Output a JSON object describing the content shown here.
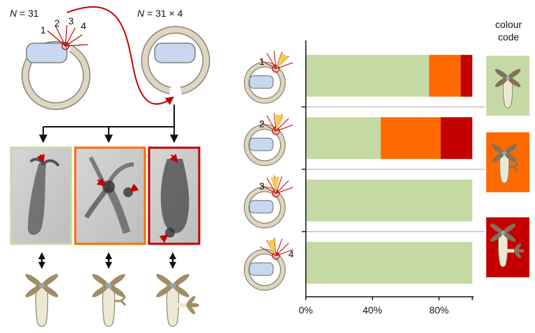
{
  "labels": {
    "n_left_var": "N",
    "n_left_rest": " = 31",
    "n_right_var": "N",
    "n_right_rest": " = 31 × 4",
    "sites": [
      "1",
      "2",
      "3",
      "4"
    ],
    "colour_code": [
      "colour",
      "code"
    ]
  },
  "colors": {
    "green": "#c5d9a4",
    "orange": "#ff6a00",
    "red": "#c40000",
    "cut": "#f3c64a",
    "disc": "#c8d8f0",
    "ring": "#dcd6c2",
    "arrow": "#c40000",
    "polyp_body": "#ede7d4",
    "tentacle": "#9f8e64"
  },
  "chart_data": {
    "type": "bar",
    "orientation": "horizontal",
    "stacked": true,
    "categories": [
      "1",
      "2",
      "3",
      "4"
    ],
    "series": [
      {
        "color": "#c5d9a4",
        "values": [
          74,
          45,
          100,
          100
        ]
      },
      {
        "color": "#ff6a00",
        "values": [
          19,
          36,
          0,
          0
        ]
      },
      {
        "color": "#c40000",
        "values": [
          7,
          19,
          0,
          0
        ]
      }
    ],
    "xlim": [
      0,
      100
    ],
    "xticks": [
      "0%",
      "40%",
      "80%"
    ],
    "xtick_values": [
      0,
      40,
      80
    ]
  }
}
